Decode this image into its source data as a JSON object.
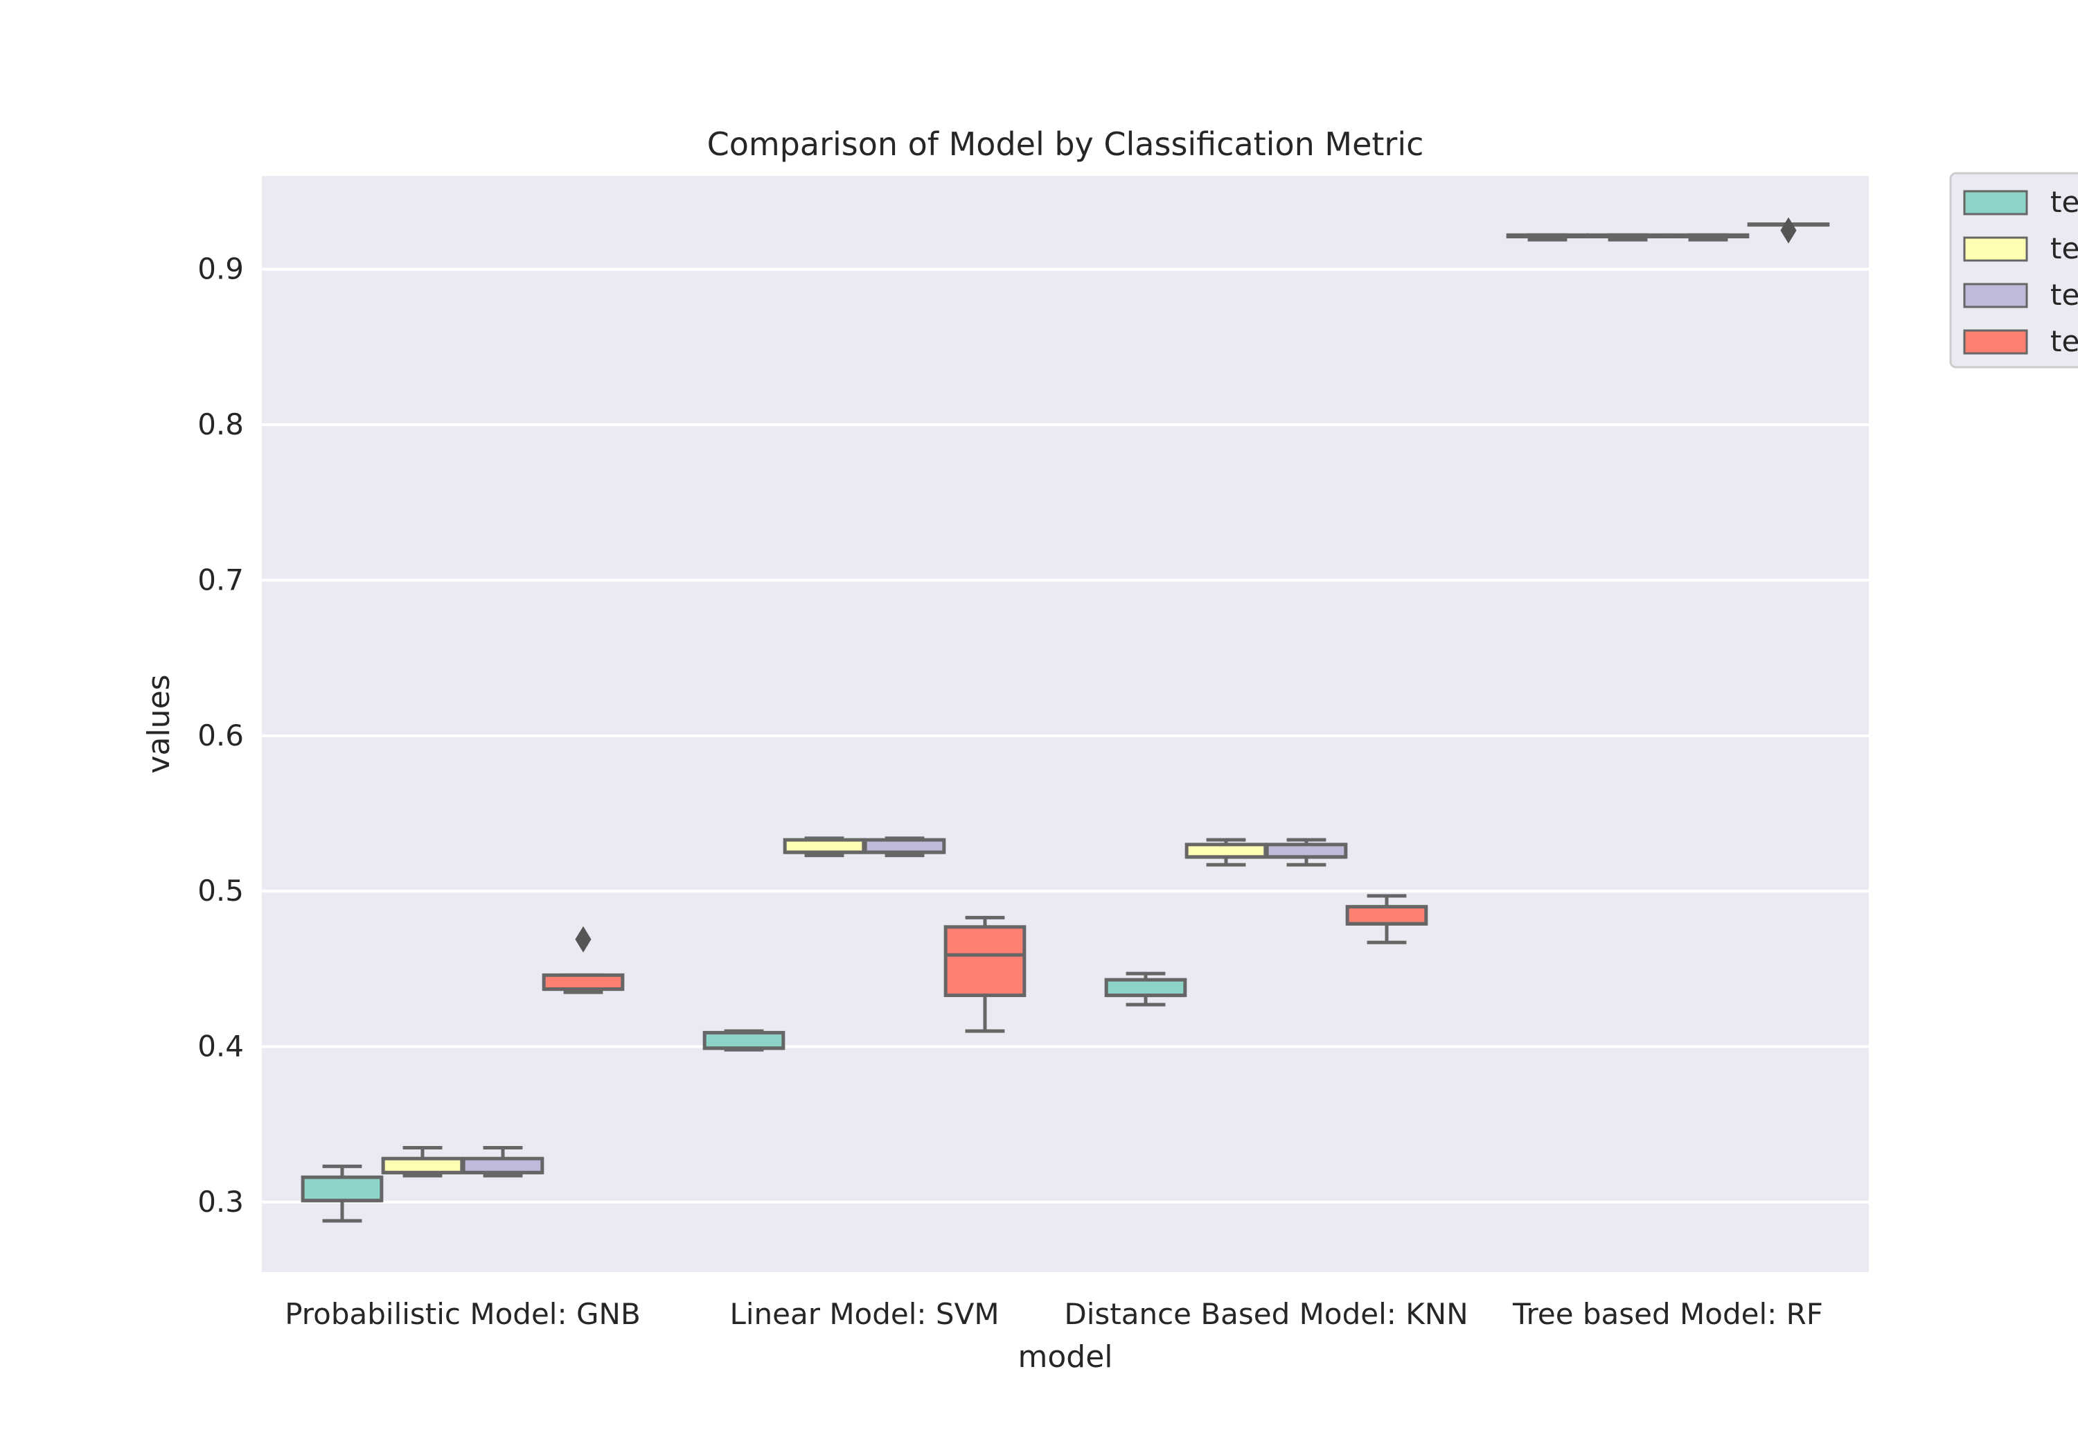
{
  "chart_data": {
    "type": "box",
    "title": "Comparison of Model by Classification Metric",
    "xlabel": "model",
    "ylabel": "values",
    "ylim": [
      0.255,
      0.96
    ],
    "yticks": [
      "0.3",
      "0.4",
      "0.5",
      "0.6",
      "0.7",
      "0.8",
      "0.9"
    ],
    "categories": [
      "Probabilistic Model: GNB",
      "Linear Model: SVM",
      "Distance Based Model: KNN",
      "Tree based Model: RF"
    ],
    "grid": true,
    "legend_position": "outside top-right (clipped)",
    "legend_labels": [
      "te",
      "te",
      "te",
      "te"
    ],
    "series": [
      {
        "color": "#8dd3c7",
        "boxes": [
          {
            "whislo": 0.288,
            "q1": 0.301,
            "med": 0.301,
            "q3": 0.316,
            "whishi": 0.323,
            "fliers": []
          },
          {
            "whislo": 0.398,
            "q1": 0.399,
            "med": 0.399,
            "q3": 0.409,
            "whishi": 0.41,
            "fliers": []
          },
          {
            "whislo": 0.427,
            "q1": 0.433,
            "med": 0.433,
            "q3": 0.443,
            "whishi": 0.447,
            "fliers": []
          },
          {
            "whislo": 0.919,
            "q1": 0.921,
            "med": 0.921,
            "q3": 0.922,
            "whishi": 0.922,
            "fliers": []
          }
        ]
      },
      {
        "color": "#ffffb3",
        "boxes": [
          {
            "whislo": 0.317,
            "q1": 0.319,
            "med": 0.319,
            "q3": 0.328,
            "whishi": 0.335,
            "fliers": []
          },
          {
            "whislo": 0.523,
            "q1": 0.525,
            "med": 0.525,
            "q3": 0.533,
            "whishi": 0.534,
            "fliers": []
          },
          {
            "whislo": 0.517,
            "q1": 0.522,
            "med": 0.522,
            "q3": 0.53,
            "whishi": 0.533,
            "fliers": []
          },
          {
            "whislo": 0.919,
            "q1": 0.921,
            "med": 0.921,
            "q3": 0.922,
            "whishi": 0.922,
            "fliers": []
          }
        ]
      },
      {
        "color": "#bebada",
        "boxes": [
          {
            "whislo": 0.317,
            "q1": 0.319,
            "med": 0.319,
            "q3": 0.328,
            "whishi": 0.335,
            "fliers": []
          },
          {
            "whislo": 0.523,
            "q1": 0.525,
            "med": 0.525,
            "q3": 0.533,
            "whishi": 0.534,
            "fliers": []
          },
          {
            "whislo": 0.517,
            "q1": 0.522,
            "med": 0.522,
            "q3": 0.53,
            "whishi": 0.533,
            "fliers": []
          },
          {
            "whislo": 0.919,
            "q1": 0.921,
            "med": 0.921,
            "q3": 0.922,
            "whishi": 0.922,
            "fliers": []
          }
        ]
      },
      {
        "color": "#fb8072",
        "boxes": [
          {
            "whislo": 0.435,
            "q1": 0.437,
            "med": 0.437,
            "q3": 0.446,
            "whishi": 0.446,
            "fliers": [
              0.469
            ]
          },
          {
            "whislo": 0.41,
            "q1": 0.433,
            "med": 0.459,
            "q3": 0.477,
            "whishi": 0.483,
            "fliers": []
          },
          {
            "whislo": 0.467,
            "q1": 0.479,
            "med": 0.479,
            "q3": 0.49,
            "whishi": 0.497,
            "fliers": []
          },
          {
            "whislo": 0.929,
            "q1": 0.929,
            "med": 0.929,
            "q3": 0.929,
            "whishi": 0.929,
            "fliers": [
              0.925
            ]
          }
        ]
      }
    ]
  }
}
